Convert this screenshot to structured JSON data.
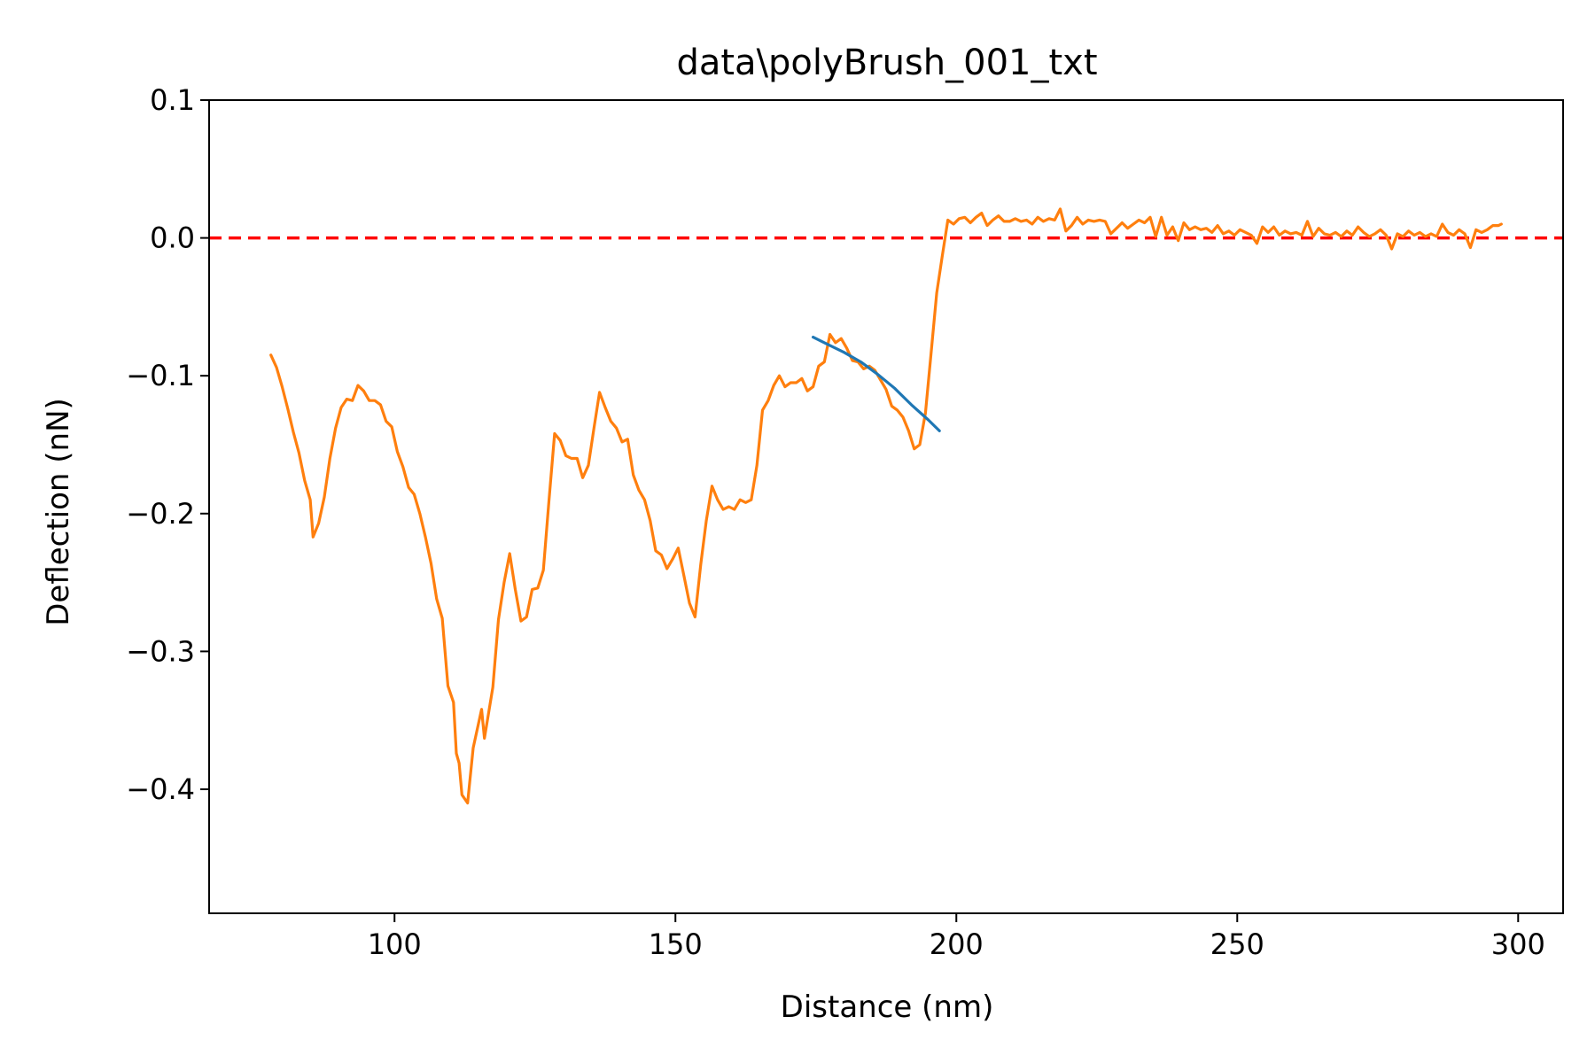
{
  "chart_data": {
    "type": "line",
    "title": "data\\polyBrush_001_txt",
    "xlabel": "Distance (nm)",
    "ylabel": "Deflection (nN)",
    "xlim": [
      67,
      308
    ],
    "ylim": [
      -0.49,
      0.1
    ],
    "xticks": [
      100,
      150,
      200,
      250,
      300
    ],
    "yticks": [
      0.1,
      0.0,
      -0.1,
      -0.2,
      -0.3,
      -0.4
    ],
    "xtick_labels": [
      "100",
      "150",
      "200",
      "250",
      "300"
    ],
    "ytick_labels": [
      "0.1",
      "0.0",
      "−0.1",
      "−0.2",
      "−0.3",
      "−0.4"
    ],
    "grid": false,
    "series": [
      {
        "color": "#ff7f0e",
        "points": [
          [
            78,
            -0.085
          ],
          [
            79,
            -0.094
          ],
          [
            80,
            -0.108
          ],
          [
            81,
            -0.124
          ],
          [
            82,
            -0.141
          ],
          [
            83,
            -0.156
          ],
          [
            84,
            -0.176
          ],
          [
            85,
            -0.19
          ],
          [
            85.5,
            -0.217
          ],
          [
            86.5,
            -0.207
          ],
          [
            87.5,
            -0.188
          ],
          [
            88.5,
            -0.16
          ],
          [
            89.5,
            -0.138
          ],
          [
            90.5,
            -0.123
          ],
          [
            91.5,
            -0.117
          ],
          [
            92.5,
            -0.118
          ],
          [
            93.5,
            -0.107
          ],
          [
            94.5,
            -0.111
          ],
          [
            95.5,
            -0.118
          ],
          [
            96.5,
            -0.118
          ],
          [
            97.5,
            -0.121
          ],
          [
            98.5,
            -0.133
          ],
          [
            99.5,
            -0.137
          ],
          [
            100.5,
            -0.155
          ],
          [
            101.5,
            -0.166
          ],
          [
            102.5,
            -0.181
          ],
          [
            103.5,
            -0.186
          ],
          [
            104.5,
            -0.2
          ],
          [
            105.5,
            -0.217
          ],
          [
            106.5,
            -0.236
          ],
          [
            107.5,
            -0.262
          ],
          [
            108.5,
            -0.276
          ],
          [
            109.5,
            -0.325
          ],
          [
            110.5,
            -0.337
          ],
          [
            111,
            -0.374
          ],
          [
            111.5,
            -0.381
          ],
          [
            112,
            -0.404
          ],
          [
            113,
            -0.41
          ],
          [
            114,
            -0.37
          ],
          [
            115.5,
            -0.342
          ],
          [
            116,
            -0.363
          ],
          [
            117.5,
            -0.326
          ],
          [
            118.5,
            -0.277
          ],
          [
            119.5,
            -0.25
          ],
          [
            120.5,
            -0.229
          ],
          [
            121.5,
            -0.255
          ],
          [
            122.5,
            -0.278
          ],
          [
            123.5,
            -0.275
          ],
          [
            124.5,
            -0.255
          ],
          [
            125.5,
            -0.254
          ],
          [
            126.5,
            -0.241
          ],
          [
            127.5,
            -0.19
          ],
          [
            128.5,
            -0.142
          ],
          [
            129.5,
            -0.147
          ],
          [
            130.5,
            -0.158
          ],
          [
            131.5,
            -0.16
          ],
          [
            132.5,
            -0.16
          ],
          [
            133.5,
            -0.174
          ],
          [
            134.5,
            -0.165
          ],
          [
            135.5,
            -0.138
          ],
          [
            136.5,
            -0.112
          ],
          [
            137.5,
            -0.123
          ],
          [
            138.5,
            -0.133
          ],
          [
            139.5,
            -0.138
          ],
          [
            140.5,
            -0.148
          ],
          [
            141.5,
            -0.146
          ],
          [
            142.5,
            -0.172
          ],
          [
            143.5,
            -0.183
          ],
          [
            144.5,
            -0.19
          ],
          [
            145.5,
            -0.205
          ],
          [
            146.5,
            -0.227
          ],
          [
            147.5,
            -0.23
          ],
          [
            148.5,
            -0.24
          ],
          [
            149.5,
            -0.233
          ],
          [
            150.5,
            -0.225
          ],
          [
            151.5,
            -0.245
          ],
          [
            152.5,
            -0.265
          ],
          [
            153.5,
            -0.275
          ],
          [
            154.5,
            -0.237
          ],
          [
            155.5,
            -0.205
          ],
          [
            156.5,
            -0.18
          ],
          [
            157.5,
            -0.19
          ],
          [
            158.5,
            -0.197
          ],
          [
            159.5,
            -0.195
          ],
          [
            160.5,
            -0.197
          ],
          [
            161.5,
            -0.19
          ],
          [
            162.5,
            -0.192
          ],
          [
            163.5,
            -0.19
          ],
          [
            164.5,
            -0.165
          ],
          [
            165.5,
            -0.125
          ],
          [
            166.5,
            -0.118
          ],
          [
            167.5,
            -0.107
          ],
          [
            168.5,
            -0.1
          ],
          [
            169.5,
            -0.108
          ],
          [
            170.5,
            -0.105
          ],
          [
            171.5,
            -0.105
          ],
          [
            172.5,
            -0.102
          ],
          [
            173.5,
            -0.111
          ],
          [
            174.5,
            -0.108
          ],
          [
            175.5,
            -0.093
          ],
          [
            176.5,
            -0.09
          ],
          [
            177.5,
            -0.07
          ],
          [
            178.5,
            -0.076
          ],
          [
            179.5,
            -0.073
          ],
          [
            180.5,
            -0.08
          ],
          [
            181.5,
            -0.089
          ],
          [
            182.5,
            -0.09
          ],
          [
            183.5,
            -0.095
          ],
          [
            184.5,
            -0.093
          ],
          [
            185.5,
            -0.096
          ],
          [
            186.5,
            -0.103
          ],
          [
            187.5,
            -0.11
          ],
          [
            188.5,
            -0.122
          ],
          [
            189.5,
            -0.125
          ],
          [
            190.5,
            -0.13
          ],
          [
            191.5,
            -0.14
          ],
          [
            192.5,
            -0.153
          ],
          [
            193.5,
            -0.15
          ],
          [
            194.5,
            -0.127
          ],
          [
            195.5,
            -0.084
          ],
          [
            196.5,
            -0.04
          ],
          [
            197.5,
            -0.013
          ],
          [
            198.5,
            0.013
          ],
          [
            199.5,
            0.01
          ],
          [
            200.5,
            0.014
          ],
          [
            201.5,
            0.015
          ],
          [
            202.5,
            0.011
          ],
          [
            203.5,
            0.015
          ],
          [
            204.5,
            0.018
          ],
          [
            205.5,
            0.009
          ],
          [
            206.5,
            0.013
          ],
          [
            207.5,
            0.016
          ],
          [
            208.5,
            0.012
          ],
          [
            209.5,
            0.012
          ],
          [
            210.5,
            0.014
          ],
          [
            211.5,
            0.012
          ],
          [
            212.5,
            0.013
          ],
          [
            213.5,
            0.01
          ],
          [
            214.5,
            0.015
          ],
          [
            215.5,
            0.012
          ],
          [
            216.5,
            0.014
          ],
          [
            217.5,
            0.013
          ],
          [
            218.5,
            0.021
          ],
          [
            219.5,
            0.005
          ],
          [
            220.5,
            0.009
          ],
          [
            221.5,
            0.015
          ],
          [
            222.5,
            0.01
          ],
          [
            223.5,
            0.013
          ],
          [
            224.5,
            0.012
          ],
          [
            225.5,
            0.013
          ],
          [
            226.5,
            0.012
          ],
          [
            227.5,
            0.003
          ],
          [
            228.5,
            0.007
          ],
          [
            229.5,
            0.011
          ],
          [
            230.5,
            0.007
          ],
          [
            231.5,
            0.01
          ],
          [
            232.5,
            0.013
          ],
          [
            233.5,
            0.011
          ],
          [
            234.5,
            0.015
          ],
          [
            235.5,
            0.001
          ],
          [
            236.5,
            0.015
          ],
          [
            237.5,
            0.002
          ],
          [
            238.5,
            0.008
          ],
          [
            239.5,
            -0.002
          ],
          [
            240.5,
            0.011
          ],
          [
            241.5,
            0.006
          ],
          [
            242.5,
            0.008
          ],
          [
            243.5,
            0.006
          ],
          [
            244.5,
            0.007
          ],
          [
            245.5,
            0.004
          ],
          [
            246.5,
            0.009
          ],
          [
            247.5,
            0.003
          ],
          [
            248.5,
            0.005
          ],
          [
            249.5,
            0.002
          ],
          [
            250.5,
            0.006
          ],
          [
            251.5,
            0.004
          ],
          [
            252.5,
            0.002
          ],
          [
            253.5,
            -0.004
          ],
          [
            254.5,
            0.008
          ],
          [
            255.5,
            0.004
          ],
          [
            256.5,
            0.008
          ],
          [
            257.5,
            0.002
          ],
          [
            258.5,
            0.005
          ],
          [
            259.5,
            0.003
          ],
          [
            260.5,
            0.004
          ],
          [
            261.5,
            0.002
          ],
          [
            262.5,
            0.012
          ],
          [
            263.5,
            0.001
          ],
          [
            264.5,
            0.007
          ],
          [
            265.5,
            0.003
          ],
          [
            266.5,
            0.002
          ],
          [
            267.5,
            0.004
          ],
          [
            268.5,
            0.001
          ],
          [
            269.5,
            0.005
          ],
          [
            270.5,
            0.002
          ],
          [
            271.5,
            0.008
          ],
          [
            272.5,
            0.004
          ],
          [
            273.5,
            0.001
          ],
          [
            274.5,
            0.003
          ],
          [
            275.5,
            0.006
          ],
          [
            276.5,
            0.002
          ],
          [
            277.5,
            -0.008
          ],
          [
            278.5,
            0.003
          ],
          [
            279.5,
            0.001
          ],
          [
            280.5,
            0.005
          ],
          [
            281.5,
            0.002
          ],
          [
            282.5,
            0.004
          ],
          [
            283.5,
            0.001
          ],
          [
            284.5,
            0.003
          ],
          [
            285.5,
            0.001
          ],
          [
            286.5,
            0.01
          ],
          [
            287.5,
            0.004
          ],
          [
            288.5,
            0.002
          ],
          [
            289.5,
            0.006
          ],
          [
            290.5,
            0.003
          ],
          [
            291.5,
            -0.007
          ],
          [
            292.5,
            0.006
          ],
          [
            293.5,
            0.004
          ],
          [
            294.5,
            0.006
          ],
          [
            295.5,
            0.009
          ],
          [
            296.5,
            0.009
          ],
          [
            297,
            0.01
          ]
        ]
      },
      {
        "color": "#1f77b4",
        "points": [
          [
            174.5,
            -0.072
          ],
          [
            177,
            -0.077
          ],
          [
            180,
            -0.083
          ],
          [
            183,
            -0.09
          ],
          [
            186,
            -0.099
          ],
          [
            189,
            -0.109
          ],
          [
            192,
            -0.121
          ],
          [
            195,
            -0.132
          ],
          [
            197,
            -0.14
          ]
        ]
      }
    ],
    "reference_line": {
      "y": 0.0,
      "color": "#ff0000",
      "style": "dashed"
    }
  }
}
